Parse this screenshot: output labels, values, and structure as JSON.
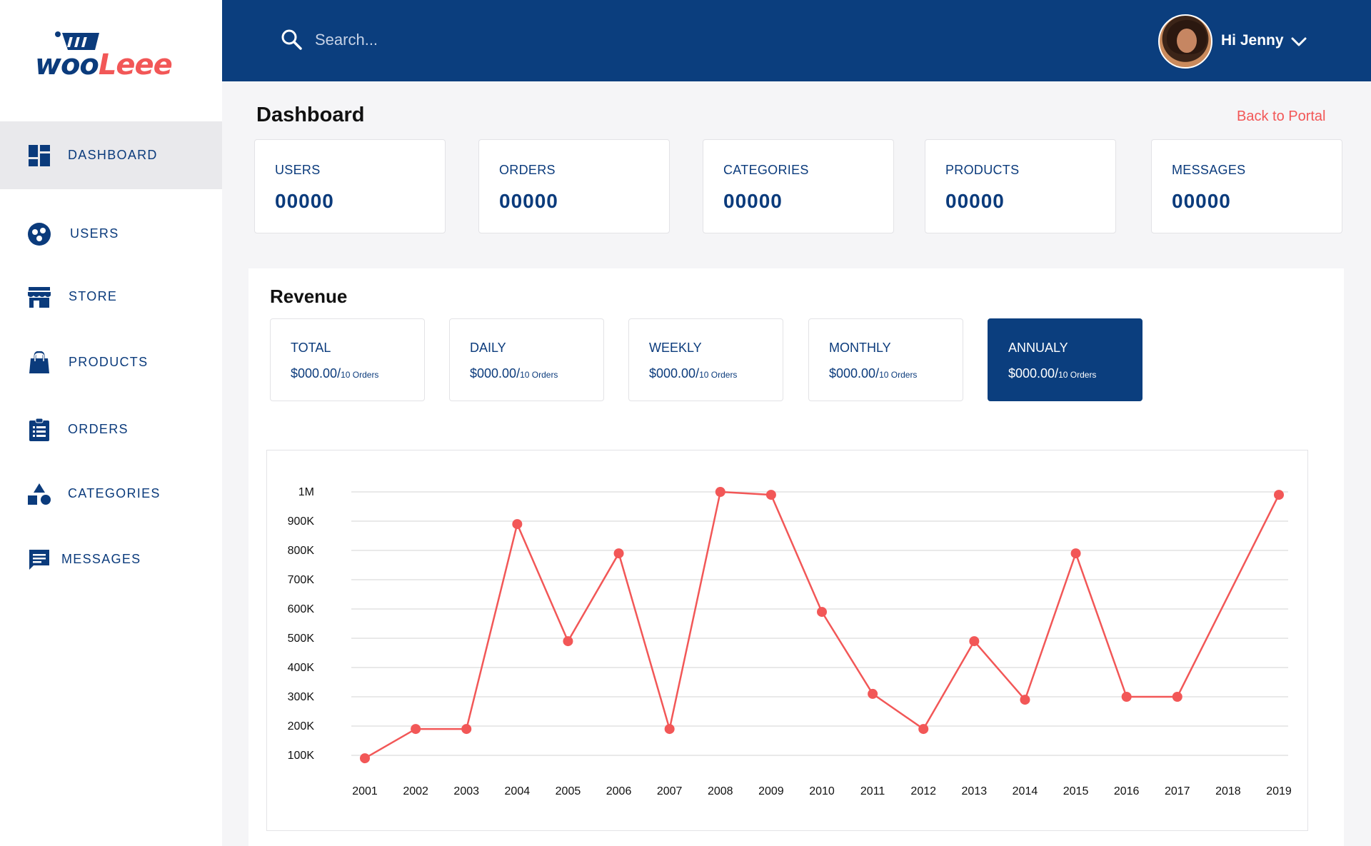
{
  "brand": {
    "logo_part1": "woo",
    "logo_part2": "Leee"
  },
  "sidebar": {
    "items": [
      {
        "label": "DASHBOARD",
        "icon": "dashboard-icon",
        "active": true
      },
      {
        "label": "USERS",
        "icon": "users-icon",
        "active": false
      },
      {
        "label": "STORE",
        "icon": "store-icon",
        "active": false
      },
      {
        "label": "PRODUCTS",
        "icon": "bag-icon",
        "active": false
      },
      {
        "label": "ORDERS",
        "icon": "clipboard-icon",
        "active": false
      },
      {
        "label": "CATEGORIES",
        "icon": "shapes-icon",
        "active": false
      },
      {
        "label": "MESSAGES",
        "icon": "message-icon",
        "active": false
      }
    ]
  },
  "header": {
    "search_placeholder": "Search...",
    "greeting": "Hi Jenny"
  },
  "main": {
    "title": "Dashboard",
    "back_link": "Back to Portal",
    "stats": [
      {
        "label": "USERS",
        "value": "00000"
      },
      {
        "label": "ORDERS",
        "value": "00000"
      },
      {
        "label": "CATEGORIES",
        "value": "00000"
      },
      {
        "label": "PRODUCTS",
        "value": "00000"
      },
      {
        "label": "MESSAGES",
        "value": "00000"
      }
    ]
  },
  "revenue": {
    "title": "Revenue",
    "cards": [
      {
        "label": "TOTAL",
        "amount": "$000.00/",
        "orders": "10 Orders",
        "active": false
      },
      {
        "label": "DAILY",
        "amount": "$000.00/",
        "orders": "10 Orders",
        "active": false
      },
      {
        "label": "WEEKLY",
        "amount": "$000.00/",
        "orders": "10 Orders",
        "active": false
      },
      {
        "label": "MONTHLY",
        "amount": "$000.00/",
        "orders": "10 Orders",
        "active": false
      },
      {
        "label": "ANNUALY",
        "amount": "$000.00/",
        "orders": "10 Orders",
        "active": true
      }
    ]
  },
  "colors": {
    "primary": "#0b3e7e",
    "accent": "#f25757",
    "background": "#f5f5f7"
  },
  "chart_data": {
    "type": "line",
    "title": "",
    "xlabel": "",
    "ylabel": "",
    "x": [
      "2001",
      "2002",
      "2003",
      "2004",
      "2005",
      "2006",
      "2007",
      "2008",
      "2009",
      "2010",
      "2011",
      "2012",
      "2013",
      "2014",
      "2015",
      "2016",
      "2017",
      "2018",
      "2019"
    ],
    "series": [
      {
        "name": "",
        "color": "#f25757",
        "values": [
          90000,
          190000,
          190000,
          890000,
          490000,
          790000,
          190000,
          1000000,
          990000,
          590000,
          310000,
          190000,
          490000,
          290000,
          790000,
          300000,
          300000,
          null,
          990000
        ]
      }
    ],
    "yticks": [
      100000,
      200000,
      300000,
      400000,
      500000,
      600000,
      700000,
      800000,
      900000,
      1000000
    ],
    "ytick_labels": [
      "100K",
      "200K",
      "300K",
      "400K",
      "500K",
      "600K",
      "700K",
      "800K",
      "900K",
      "1M"
    ],
    "ylim": [
      100000,
      1000000
    ],
    "grid": true
  }
}
